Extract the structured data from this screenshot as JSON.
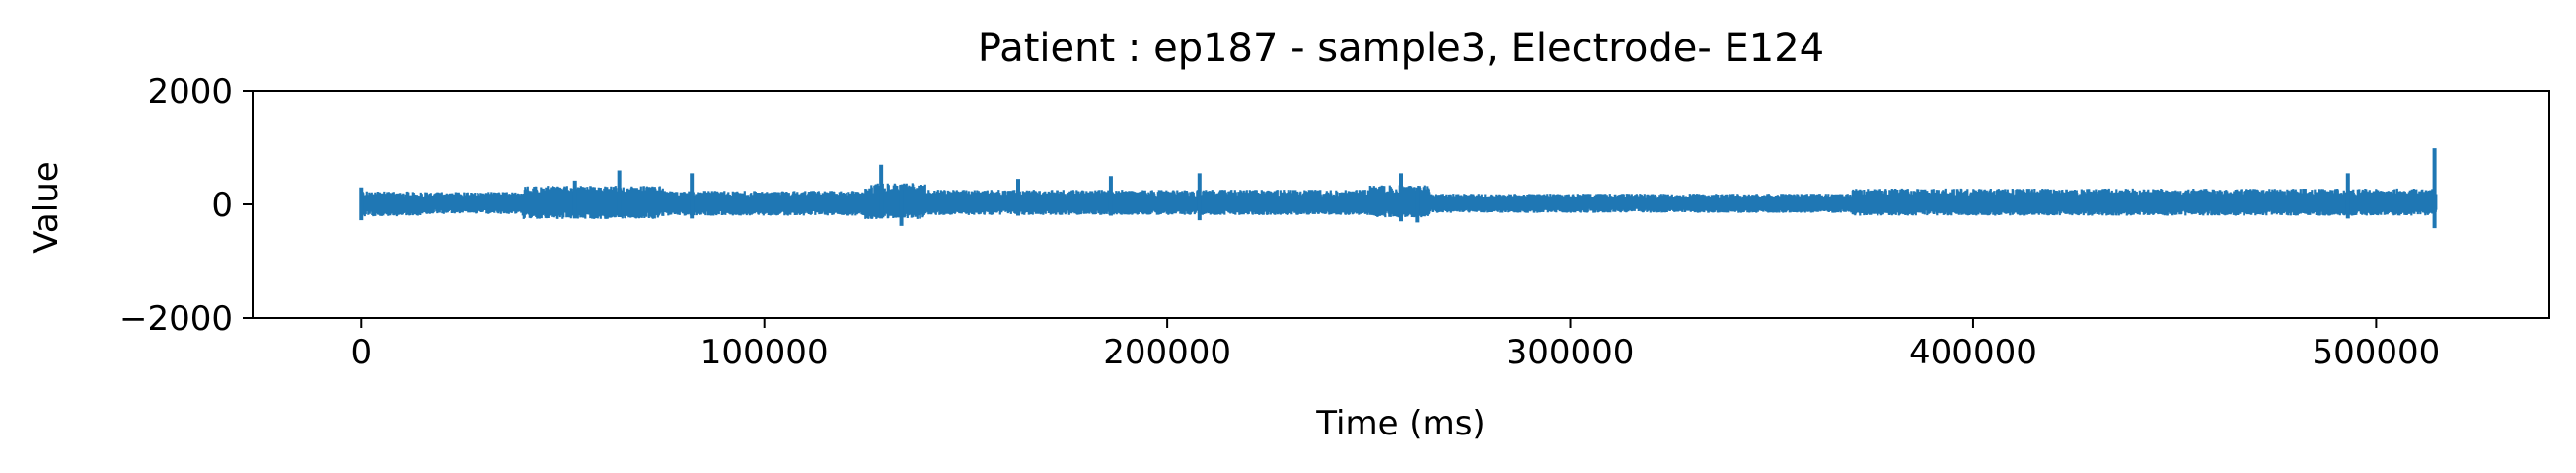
{
  "chart_data": {
    "type": "line",
    "title": "Patient : ep187 - sample3, Electrode- E124",
    "xlabel": "Time (ms)",
    "ylabel": "Value",
    "xlim": [
      -27000,
      543000
    ],
    "ylim": [
      -2000,
      2000
    ],
    "xticks": [
      0,
      100000,
      200000,
      300000,
      400000,
      500000
    ],
    "yticks": [
      -2000,
      0,
      2000
    ],
    "xtick_labels": [
      "0",
      "100000",
      "200000",
      "300000",
      "400000",
      "500000"
    ],
    "ytick_labels": [
      "−2000",
      "0",
      "2000"
    ],
    "grid": false,
    "legend": "none",
    "series": [
      {
        "color": "#1f77b4",
        "x_range": [
          0,
          515000
        ],
        "typical_amplitude": [
          -150,
          200
        ],
        "envelope_segments": [
          {
            "x": [
              0,
              15000
            ],
            "min": -210,
            "max": 230
          },
          {
            "x": [
              15000,
              40000
            ],
            "min": -170,
            "max": 220
          },
          {
            "x": [
              40000,
              75000
            ],
            "min": -260,
            "max": 330
          },
          {
            "x": [
              75000,
              125000
            ],
            "min": -200,
            "max": 240
          },
          {
            "x": [
              125000,
              140000
            ],
            "min": -260,
            "max": 380
          },
          {
            "x": [
              140000,
              250000
            ],
            "min": -190,
            "max": 260
          },
          {
            "x": [
              250000,
              265000
            ],
            "min": -230,
            "max": 340
          },
          {
            "x": [
              265000,
              370000
            ],
            "min": -150,
            "max": 190
          },
          {
            "x": [
              370000,
              515000
            ],
            "min": -200,
            "max": 280
          }
        ],
        "spikes": [
          {
            "x": 0,
            "min": -280,
            "max": 300
          },
          {
            "x": 53000,
            "min": -250,
            "max": 420
          },
          {
            "x": 64000,
            "min": -220,
            "max": 600
          },
          {
            "x": 82000,
            "min": -250,
            "max": 550
          },
          {
            "x": 129000,
            "min": -250,
            "max": 700
          },
          {
            "x": 134000,
            "min": -380,
            "max": 350
          },
          {
            "x": 163000,
            "min": -200,
            "max": 450
          },
          {
            "x": 186000,
            "min": -200,
            "max": 500
          },
          {
            "x": 208000,
            "min": -280,
            "max": 550
          },
          {
            "x": 258000,
            "min": -300,
            "max": 550
          },
          {
            "x": 262000,
            "min": -320,
            "max": 300
          },
          {
            "x": 493000,
            "min": -250,
            "max": 550
          },
          {
            "x": 514500,
            "min": -420,
            "max": 990
          }
        ]
      }
    ]
  }
}
